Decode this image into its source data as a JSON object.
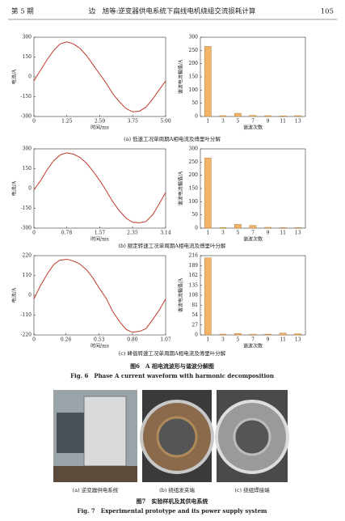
{
  "header": {
    "issue": "第 5 期",
    "title": "边　旭等:逆变器供电系统下扁线电机绕组交流损耗计算",
    "page": "105"
  },
  "chart_data": [
    {
      "type": "line",
      "ylabel": "电流/A",
      "xlabel": "时间/ms",
      "color": "#c0392b",
      "x": [
        0,
        0.25,
        0.5,
        0.75,
        1,
        1.25,
        1.5,
        1.75,
        2,
        2.25,
        2.5,
        2.75,
        3,
        3.25,
        3.5,
        3.75,
        4,
        4.25,
        4.5,
        4.75,
        5
      ],
      "values": [
        -30,
        50,
        130,
        200,
        250,
        265,
        250,
        215,
        160,
        90,
        20,
        -50,
        -130,
        -190,
        -240,
        -265,
        -260,
        -230,
        -170,
        -100,
        -30
      ],
      "xlim": [
        0,
        5
      ],
      "xticks": [
        0,
        1.25,
        {
          "value": 2.5,
          "label": "2.50"
        },
        3.75,
        {
          "value": 5,
          "label": "5.00"
        }
      ],
      "ylim": [
        -300,
        300
      ],
      "yticks": [
        -300,
        -150,
        0,
        150,
        300
      ]
    },
    {
      "type": "bar",
      "ylabel": "谐波电流幅值/A",
      "xlabel": "谐波次数",
      "color": "#f2b36b",
      "categories": [
        "1",
        "3",
        "5",
        "7",
        "9",
        "11",
        "13"
      ],
      "values": [
        265,
        3,
        12,
        4,
        3,
        2,
        3
      ],
      "ylim": [
        0,
        300
      ],
      "yticks": [
        0,
        50,
        100,
        150,
        200,
        250,
        300
      ]
    },
    {
      "type": "line",
      "ylabel": "电流/A",
      "xlabel": "时间/ms",
      "color": "#c0392b",
      "x": [
        0,
        0.16,
        0.31,
        0.47,
        0.63,
        0.78,
        0.94,
        1.1,
        1.26,
        1.41,
        1.57,
        1.73,
        1.88,
        2.04,
        2.2,
        2.35,
        2.51,
        2.67,
        2.83,
        2.98,
        3.14
      ],
      "values": [
        -10,
        60,
        140,
        210,
        255,
        270,
        260,
        235,
        190,
        130,
        60,
        -20,
        -100,
        -170,
        -225,
        -255,
        -260,
        -250,
        -200,
        -120,
        -30
      ],
      "xlim": [
        0,
        3.14
      ],
      "xticks": [
        0,
        0.78,
        1.57,
        2.35,
        3.14
      ],
      "ylim": [
        -300,
        300
      ],
      "yticks": [
        -300,
        -150,
        0,
        150,
        300
      ]
    },
    {
      "type": "bar",
      "ylabel": "谐波电流幅值/A",
      "xlabel": "谐波次数",
      "color": "#f2b36b",
      "categories": [
        "1",
        "3",
        "5",
        "7",
        "9",
        "11",
        "13"
      ],
      "values": [
        265,
        2,
        14,
        10,
        3,
        2,
        2
      ],
      "ylim": [
        0,
        300
      ],
      "yticks": [
        0,
        50,
        100,
        150,
        200,
        250,
        300
      ]
    },
    {
      "type": "line",
      "ylabel": "电流/A",
      "xlabel": "时间/ms",
      "color": "#c0392b",
      "x": [
        0,
        0.05,
        0.11,
        0.16,
        0.21,
        0.27,
        0.32,
        0.37,
        0.43,
        0.48,
        0.53,
        0.59,
        0.64,
        0.7,
        0.75,
        0.8,
        0.86,
        0.91,
        0.96,
        1.02,
        1.07
      ],
      "values": [
        -20,
        50,
        120,
        170,
        195,
        200,
        190,
        175,
        140,
        95,
        40,
        -20,
        -90,
        -150,
        -190,
        -205,
        -200,
        -185,
        -140,
        -80,
        -20
      ],
      "xlim": [
        0,
        1.07
      ],
      "xticks": [
        0,
        0.26,
        0.53,
        {
          "value": 0.8,
          "label": "0.80"
        },
        1.07
      ],
      "ylim": [
        -220,
        220
      ],
      "yticks": [
        -220,
        -110,
        0,
        110,
        220
      ]
    },
    {
      "type": "bar",
      "ylabel": "谐波电流幅值/A",
      "xlabel": "谐波次数",
      "color": "#f2b36b",
      "categories": [
        "1",
        "3",
        "5",
        "7",
        "9",
        "11",
        "13"
      ],
      "values": [
        210,
        2,
        4,
        2,
        2,
        5,
        3
      ],
      "ylim": [
        0,
        216
      ],
      "yticks": [
        0,
        27,
        54,
        81,
        108,
        135,
        162,
        189,
        216
      ]
    }
  ],
  "captions": [
    "(a) 低速工况单周期A相电流及傅里叶分解",
    "(b) 额定转速工况单周期A相电流及傅里叶分解",
    "(c) 峰值转速工况单周期A相电流及傅里叶分解"
  ],
  "figure6": {
    "title_cn": "图6　A 相电流波形与谐波分解图",
    "title_en": "Fig. 6　Phase A current waveform with harmonic decomposition"
  },
  "figure7": {
    "subcaptions": [
      "(a) 逆变器供电系统",
      "(b) 绕组发夹端",
      "(c) 绕组焊接端"
    ],
    "title_cn": "图7　实验样机及其供电系统",
    "title_en": "Fig. 7　Experimental prototype and its power supply system"
  }
}
